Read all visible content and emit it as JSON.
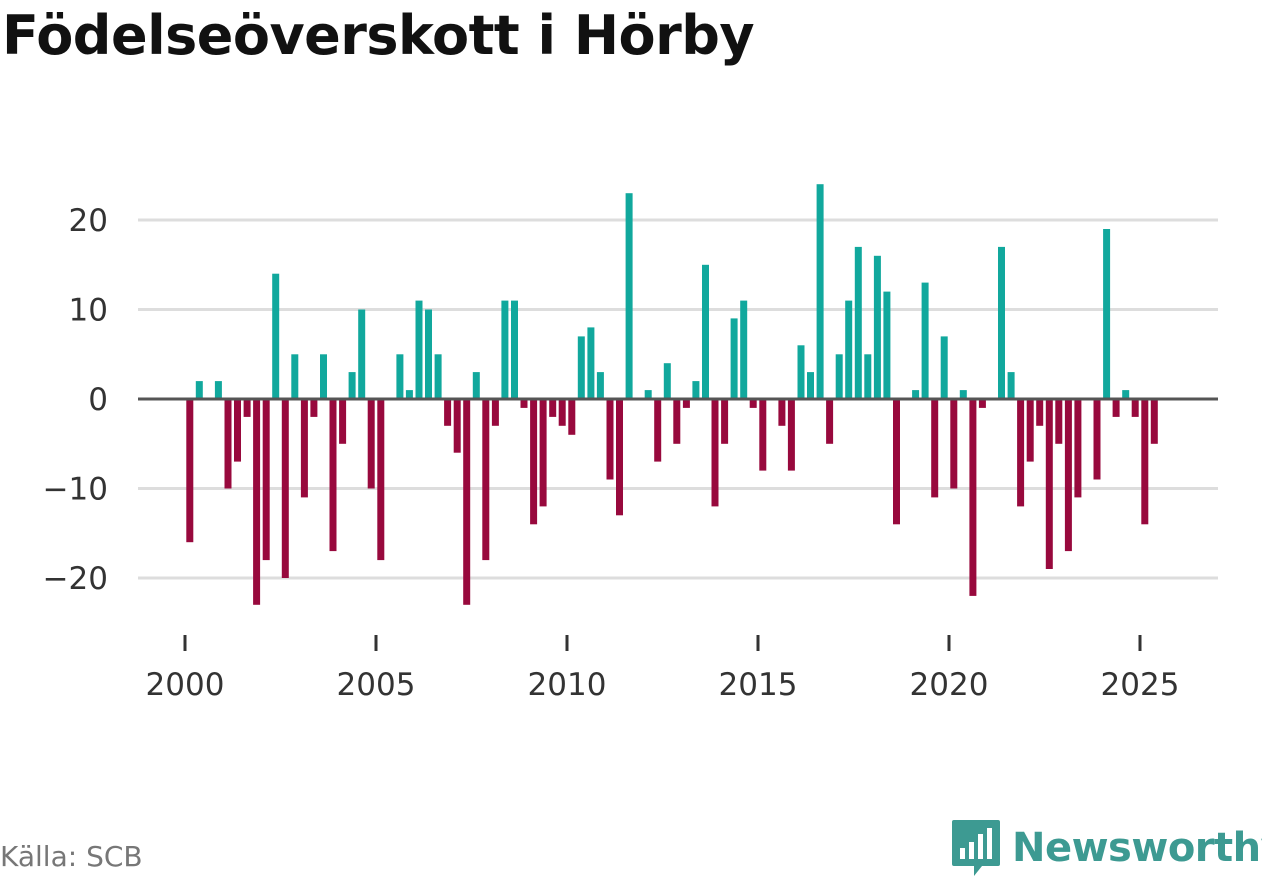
{
  "title": "Födelseöverskott i Hörby",
  "source": "Källa: SCB",
  "brand": {
    "name": "Newsworthy",
    "icon": "newsworthy-logo-icon",
    "color": "#3d9a92"
  },
  "colors": {
    "positive": "#11a89d",
    "negative": "#98093d",
    "zero_line": "#555555",
    "grid": "#dddddd"
  },
  "chart_data": {
    "type": "bar",
    "title": "Födelseöverskott i Hörby",
    "xlabel": "",
    "ylabel": "",
    "ylim": [
      -25,
      25
    ],
    "yticks": [
      20,
      10,
      0,
      -10,
      -20
    ],
    "ytick_labels": [
      "20",
      "10",
      "0",
      "−10",
      "−20"
    ],
    "xlim": [
      1999.5,
      2026.5
    ],
    "xticks": [
      2000,
      2005,
      2010,
      2015,
      2020,
      2025
    ],
    "xtick_labels": [
      "2000",
      "2005",
      "2010",
      "2015",
      "2020",
      "2025"
    ],
    "frequency": "quarterly",
    "start": 2000.125,
    "step": 0.25,
    "values": [
      -16,
      2,
      0,
      2,
      -10,
      -7,
      -2,
      -23,
      -18,
      14,
      -20,
      5,
      -11,
      -2,
      5,
      -17,
      -5,
      3,
      10,
      -10,
      -18,
      0,
      5,
      1,
      11,
      10,
      5,
      -3,
      -6,
      -23,
      3,
      -18,
      -3,
      11,
      11,
      -1,
      -14,
      -12,
      -2,
      -3,
      -4,
      7,
      8,
      3,
      -9,
      -13,
      23,
      0,
      1,
      -7,
      4,
      -5,
      -1,
      2,
      15,
      -12,
      -5,
      9,
      11,
      -1,
      -8,
      0,
      -3,
      -8,
      6,
      3,
      24,
      -5,
      5,
      11,
      17,
      5,
      16,
      12,
      -14,
      0,
      1,
      13,
      -11,
      7,
      -10,
      1,
      -22,
      -1,
      0,
      17,
      3,
      -12,
      -7,
      -3,
      -19,
      -5,
      -17,
      -11,
      0,
      -9,
      19,
      -2,
      1,
      -2,
      -14,
      -5
    ]
  }
}
